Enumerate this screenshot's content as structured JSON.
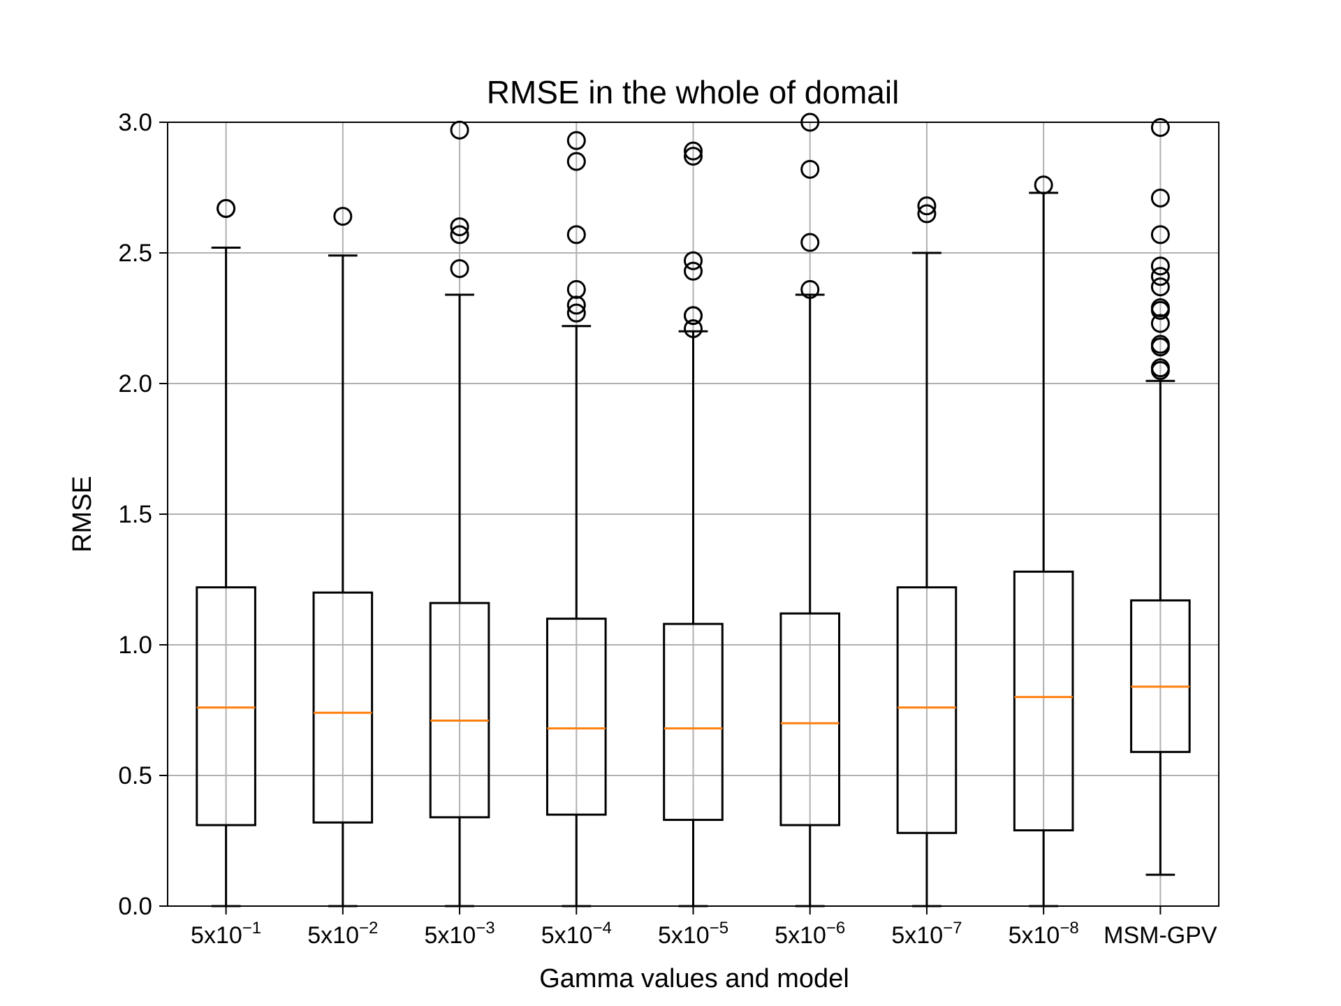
{
  "chart_data": {
    "type": "box",
    "title": "RMSE in the whole of domail",
    "xlabel": "Gamma values and model",
    "ylabel": "RMSE",
    "ylim": [
      0.0,
      3.0
    ],
    "yticks": [
      "0.0",
      "0.5",
      "1.0",
      "1.5",
      "2.0",
      "2.5",
      "3.0"
    ],
    "grid": true,
    "categories": [
      {
        "base": "5x10",
        "exp": "−1"
      },
      {
        "base": "5x10",
        "exp": "−2"
      },
      {
        "base": "5x10",
        "exp": "−3"
      },
      {
        "base": "5x10",
        "exp": "−4"
      },
      {
        "base": "5x10",
        "exp": "−5"
      },
      {
        "base": "5x10",
        "exp": "−6"
      },
      {
        "base": "5x10",
        "exp": "−7"
      },
      {
        "base": "5x10",
        "exp": "−8"
      },
      {
        "base": "MSM-GPV",
        "exp": ""
      }
    ],
    "boxes": [
      {
        "whislo": 0.0,
        "q1": 0.31,
        "med": 0.76,
        "q3": 1.22,
        "whishi": 2.52,
        "fliers": [
          2.67,
          2.67
        ]
      },
      {
        "whislo": 0.0,
        "q1": 0.32,
        "med": 0.74,
        "q3": 1.2,
        "whishi": 2.49,
        "fliers": [
          2.64
        ]
      },
      {
        "whislo": 0.0,
        "q1": 0.34,
        "med": 0.71,
        "q3": 1.16,
        "whishi": 2.34,
        "fliers": [
          2.44,
          2.57,
          2.6,
          2.97
        ]
      },
      {
        "whislo": 0.0,
        "q1": 0.35,
        "med": 0.68,
        "q3": 1.1,
        "whishi": 2.22,
        "fliers": [
          2.27,
          2.3,
          2.36,
          2.57,
          2.85,
          2.93
        ]
      },
      {
        "whislo": 0.0,
        "q1": 0.33,
        "med": 0.68,
        "q3": 1.08,
        "whishi": 2.2,
        "fliers": [
          2.21,
          2.26,
          2.26,
          2.43,
          2.47,
          2.87,
          2.89
        ]
      },
      {
        "whislo": 0.0,
        "q1": 0.31,
        "med": 0.7,
        "q3": 1.12,
        "whishi": 2.34,
        "fliers": [
          2.36,
          2.54,
          2.82,
          3.0
        ]
      },
      {
        "whislo": 0.0,
        "q1": 0.28,
        "med": 0.76,
        "q3": 1.22,
        "whishi": 2.5,
        "fliers": [
          2.65,
          2.68
        ]
      },
      {
        "whislo": 0.0,
        "q1": 0.29,
        "med": 0.8,
        "q3": 1.28,
        "whishi": 2.73,
        "fliers": [
          2.76
        ]
      },
      {
        "whislo": 0.12,
        "q1": 0.59,
        "med": 0.84,
        "q3": 1.17,
        "whishi": 2.01,
        "fliers": [
          2.05,
          2.06,
          2.14,
          2.15,
          2.23,
          2.28,
          2.29,
          2.37,
          2.41,
          2.45,
          2.57,
          2.71,
          2.98
        ]
      }
    ],
    "colors": {
      "box": "#000000",
      "median": "#ff7f0e",
      "grid": "#b0b0b0"
    }
  }
}
